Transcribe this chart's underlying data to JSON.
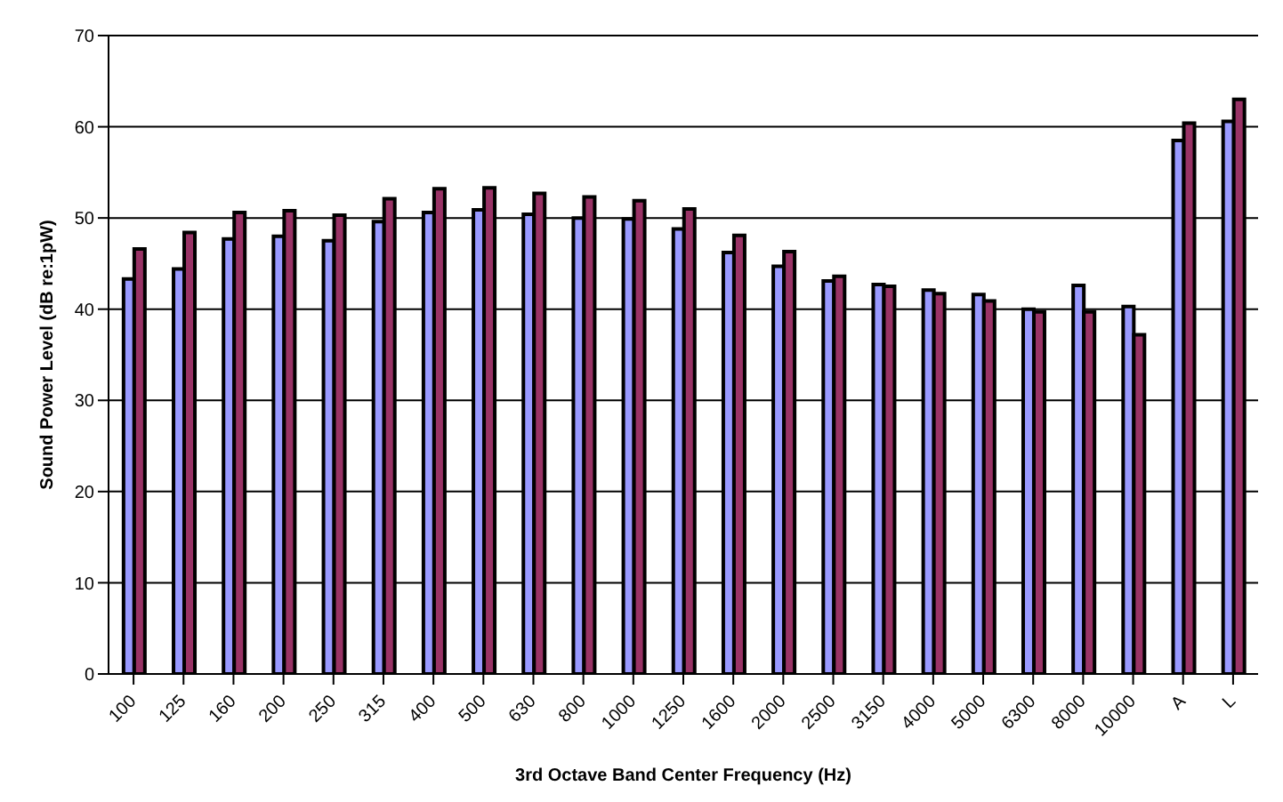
{
  "chart_data": {
    "type": "bar",
    "xlabel": "3rd Octave Band Center Frequency (Hz)",
    "ylabel": "Sound Power Level (dB re:1pW)",
    "categories": [
      "100",
      "125",
      "160",
      "200",
      "250",
      "315",
      "400",
      "500",
      "630",
      "800",
      "1000",
      "1250",
      "1600",
      "2000",
      "2500",
      "3150",
      "4000",
      "5000",
      "6300",
      "8000",
      "10000",
      "A",
      "L"
    ],
    "series": [
      {
        "color": "#9999ff",
        "values": [
          43.3,
          44.4,
          47.7,
          48.0,
          47.5,
          49.6,
          50.6,
          50.9,
          50.4,
          50.0,
          49.9,
          48.8,
          46.2,
          44.7,
          43.1,
          42.7,
          42.1,
          41.6,
          40.0,
          42.6,
          40.3,
          58.5,
          60.6
        ]
      },
      {
        "color": "#993366",
        "values": [
          46.6,
          48.4,
          50.6,
          50.8,
          50.3,
          52.1,
          53.2,
          53.3,
          52.7,
          52.3,
          51.9,
          51.0,
          48.1,
          46.3,
          43.6,
          42.5,
          41.7,
          40.9,
          39.7,
          39.7,
          37.2,
          60.4,
          63.0
        ]
      }
    ],
    "ylim": [
      0,
      70
    ],
    "yticks": [
      0,
      10,
      20,
      30,
      40,
      50,
      60,
      70
    ],
    "grid": "y",
    "legend": false
  }
}
